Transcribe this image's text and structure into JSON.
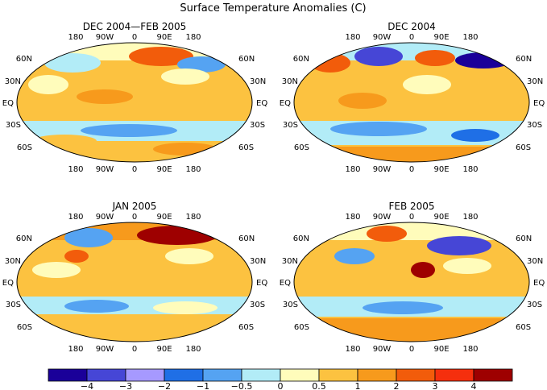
{
  "figure": {
    "title": "Surface Temperature Anomalies (C)"
  },
  "panels": [
    {
      "id": "djf",
      "title": "DEC 2004—FEB 2005",
      "lon_labels_top": [
        "180",
        "90W",
        "0",
        "90E",
        "180"
      ],
      "lon_labels_bottom": [
        "180",
        "90W",
        "0",
        "90E",
        "180"
      ],
      "lat_labels": [
        "60N",
        "30N",
        "EQ",
        "30S",
        "60S"
      ]
    },
    {
      "id": "dec",
      "title": "DEC 2004",
      "lon_labels_top": [
        "180",
        "90W",
        "0",
        "90E",
        "180"
      ],
      "lon_labels_bottom": [
        "180",
        "90W",
        "0",
        "90E",
        "180"
      ],
      "lat_labels": [
        "60N",
        "30N",
        "EQ",
        "30S",
        "60S"
      ]
    },
    {
      "id": "jan",
      "title": "JAN 2005",
      "lon_labels_top": [
        "180",
        "90W",
        "0",
        "90E",
        "180"
      ],
      "lon_labels_bottom": [
        "180",
        "90W",
        "0",
        "90E",
        "180"
      ],
      "lat_labels": [
        "60N",
        "30N",
        "EQ",
        "30S",
        "60S"
      ]
    },
    {
      "id": "feb",
      "title": "FEB 2005",
      "lon_labels_top": [
        "180",
        "90W",
        "0",
        "90E",
        "180"
      ],
      "lon_labels_bottom": [
        "180",
        "90W",
        "0",
        "90E",
        "180"
      ],
      "lat_labels": [
        "60N",
        "30N",
        "EQ",
        "30S",
        "60S"
      ]
    }
  ],
  "colorbar": {
    "colors": [
      "#1a0099",
      "#4646d6",
      "#a699ff",
      "#1f6fe6",
      "#55a3f2",
      "#b2ecf7",
      "#fffcbb",
      "#fcc240",
      "#f79a1c",
      "#f25c0b",
      "#f52f0d",
      "#9e0000"
    ],
    "labels": [
      "−4",
      "−3",
      "−2",
      "−1",
      "−0.5",
      "0",
      "0.5",
      "1",
      "2",
      "3",
      "4"
    ]
  }
}
